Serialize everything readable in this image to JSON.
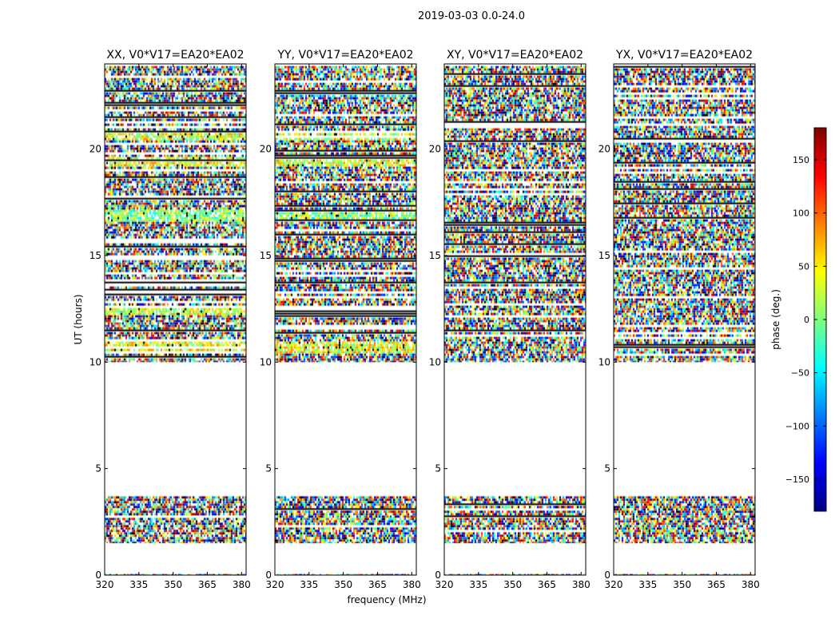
{
  "chart_data": {
    "type": "heatmap",
    "suptitle": "2019-03-03 0.0-24.0",
    "xlabel": "frequency (MHz)",
    "ylabel": "UT (hours)",
    "xlim": [
      320,
      382
    ],
    "ylim": [
      0,
      24
    ],
    "x_ticks": [
      320,
      335,
      350,
      365,
      380
    ],
    "y_ticks": [
      0,
      5,
      10,
      15,
      20
    ],
    "colorbar": {
      "label": "phase (deg.)",
      "range": [
        -180,
        180
      ],
      "ticks": [
        -150,
        -100,
        -50,
        0,
        50,
        100,
        150
      ],
      "tick_labels": [
        "−150",
        "−100",
        "−50",
        "0",
        "50",
        "100",
        "150"
      ],
      "colormap": [
        "#00007f",
        "#0000ff",
        "#007fff",
        "#00ffff",
        "#7fff7f",
        "#ffff00",
        "#ff7f00",
        "#ff0000",
        "#7f0000"
      ]
    },
    "panels": [
      {
        "title": "XX, V0*V17=EA20*EA02",
        "pol": "XX"
      },
      {
        "title": "YY, V0*V17=EA20*EA02",
        "pol": "YY"
      },
      {
        "title": "XY, V0*V17=EA20*EA02",
        "pol": "XY"
      },
      {
        "title": "YX, V0*V17=EA20*EA02",
        "pol": "YX"
      }
    ],
    "data_time_ranges_hours": [
      [
        0.0,
        0.05
      ],
      [
        1.5,
        3.7
      ],
      [
        10.0,
        23.9
      ]
    ],
    "flagged_gap_hours": [
      [
        0.05,
        1.5
      ],
      [
        3.7,
        10.0
      ]
    ],
    "coherent_bands_hours": [
      {
        "range": [
          10.4,
          11.0
        ],
        "mean_deg": 40,
        "pols": [
          "XX",
          "YY"
        ]
      },
      {
        "range": [
          12.2,
          12.6
        ],
        "mean_deg": 25,
        "pols": [
          "XX",
          "YY"
        ]
      },
      {
        "range": [
          16.6,
          17.2
        ],
        "mean_deg": 5,
        "pols": [
          "XX",
          "YY"
        ]
      },
      {
        "range": [
          19.2,
          19.6
        ],
        "mean_deg": 35,
        "pols": [
          "XX",
          "YY"
        ]
      },
      {
        "range": [
          20.4,
          20.8
        ],
        "mean_deg": 30,
        "pols": [
          "XX",
          "YY"
        ]
      },
      {
        "range": [
          22.4,
          22.6
        ],
        "mean_deg": -60,
        "pols": [
          "YY"
        ]
      }
    ]
  }
}
